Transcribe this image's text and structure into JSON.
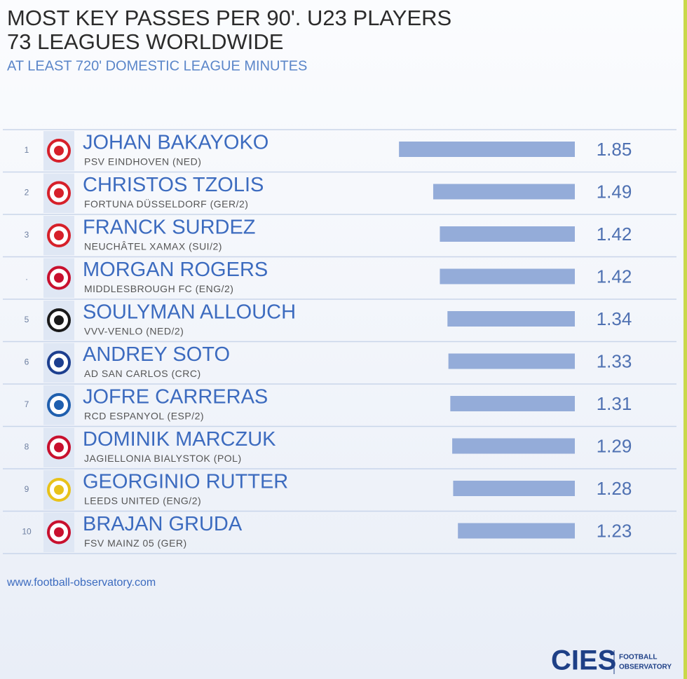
{
  "chart_data": {
    "type": "bar",
    "title": "MOST KEY PASSES PER 90'. U23 PLAYERS",
    "subtitle": [
      "73 LEAGUES WORLDWIDE",
      "AT LEAST 720' DOMESTIC LEAGUE MINUTES"
    ],
    "ranks": [
      "1",
      "2",
      "3",
      ".",
      "5",
      "6",
      "7",
      "8",
      "9",
      "10"
    ],
    "categories": [
      "JOHAN BAKAYOKO",
      "CHRISTOS TZOLIS",
      "FRANCK SURDEZ",
      "MORGAN ROGERS",
      "SOULYMAN ALLOUCH",
      "ANDREY SOTO",
      "JOFRE CARRERAS",
      "DOMINIK MARCZUK",
      "GEORGINIO RUTTER",
      "BRAJAN GRUDA"
    ],
    "clubs": [
      "PSV EINDHOVEN (NED)",
      "FORTUNA DÜSSELDORF (GER/2)",
      "NEUCHÂTEL XAMAX (SUI/2)",
      "MIDDLESBROUGH FC (ENG/2)",
      "VVV-VENLO (NED/2)",
      "AD SAN CARLOS (CRC)",
      "RCD ESPANYOL (ESP/2)",
      "JAGIELLONIA BIALYSTOK (POL)",
      "LEEDS UNITED (ENG/2)",
      "FSV MAINZ 05 (GER)"
    ],
    "values": [
      1.85,
      1.49,
      1.42,
      1.42,
      1.34,
      1.33,
      1.31,
      1.29,
      1.28,
      1.23
    ],
    "color": "#94acd9",
    "source": "www.football-observatory.com",
    "logo": {
      "text": "CIES",
      "line1": "FOOTBALL",
      "line2": "OBSERVATORY"
    }
  }
}
